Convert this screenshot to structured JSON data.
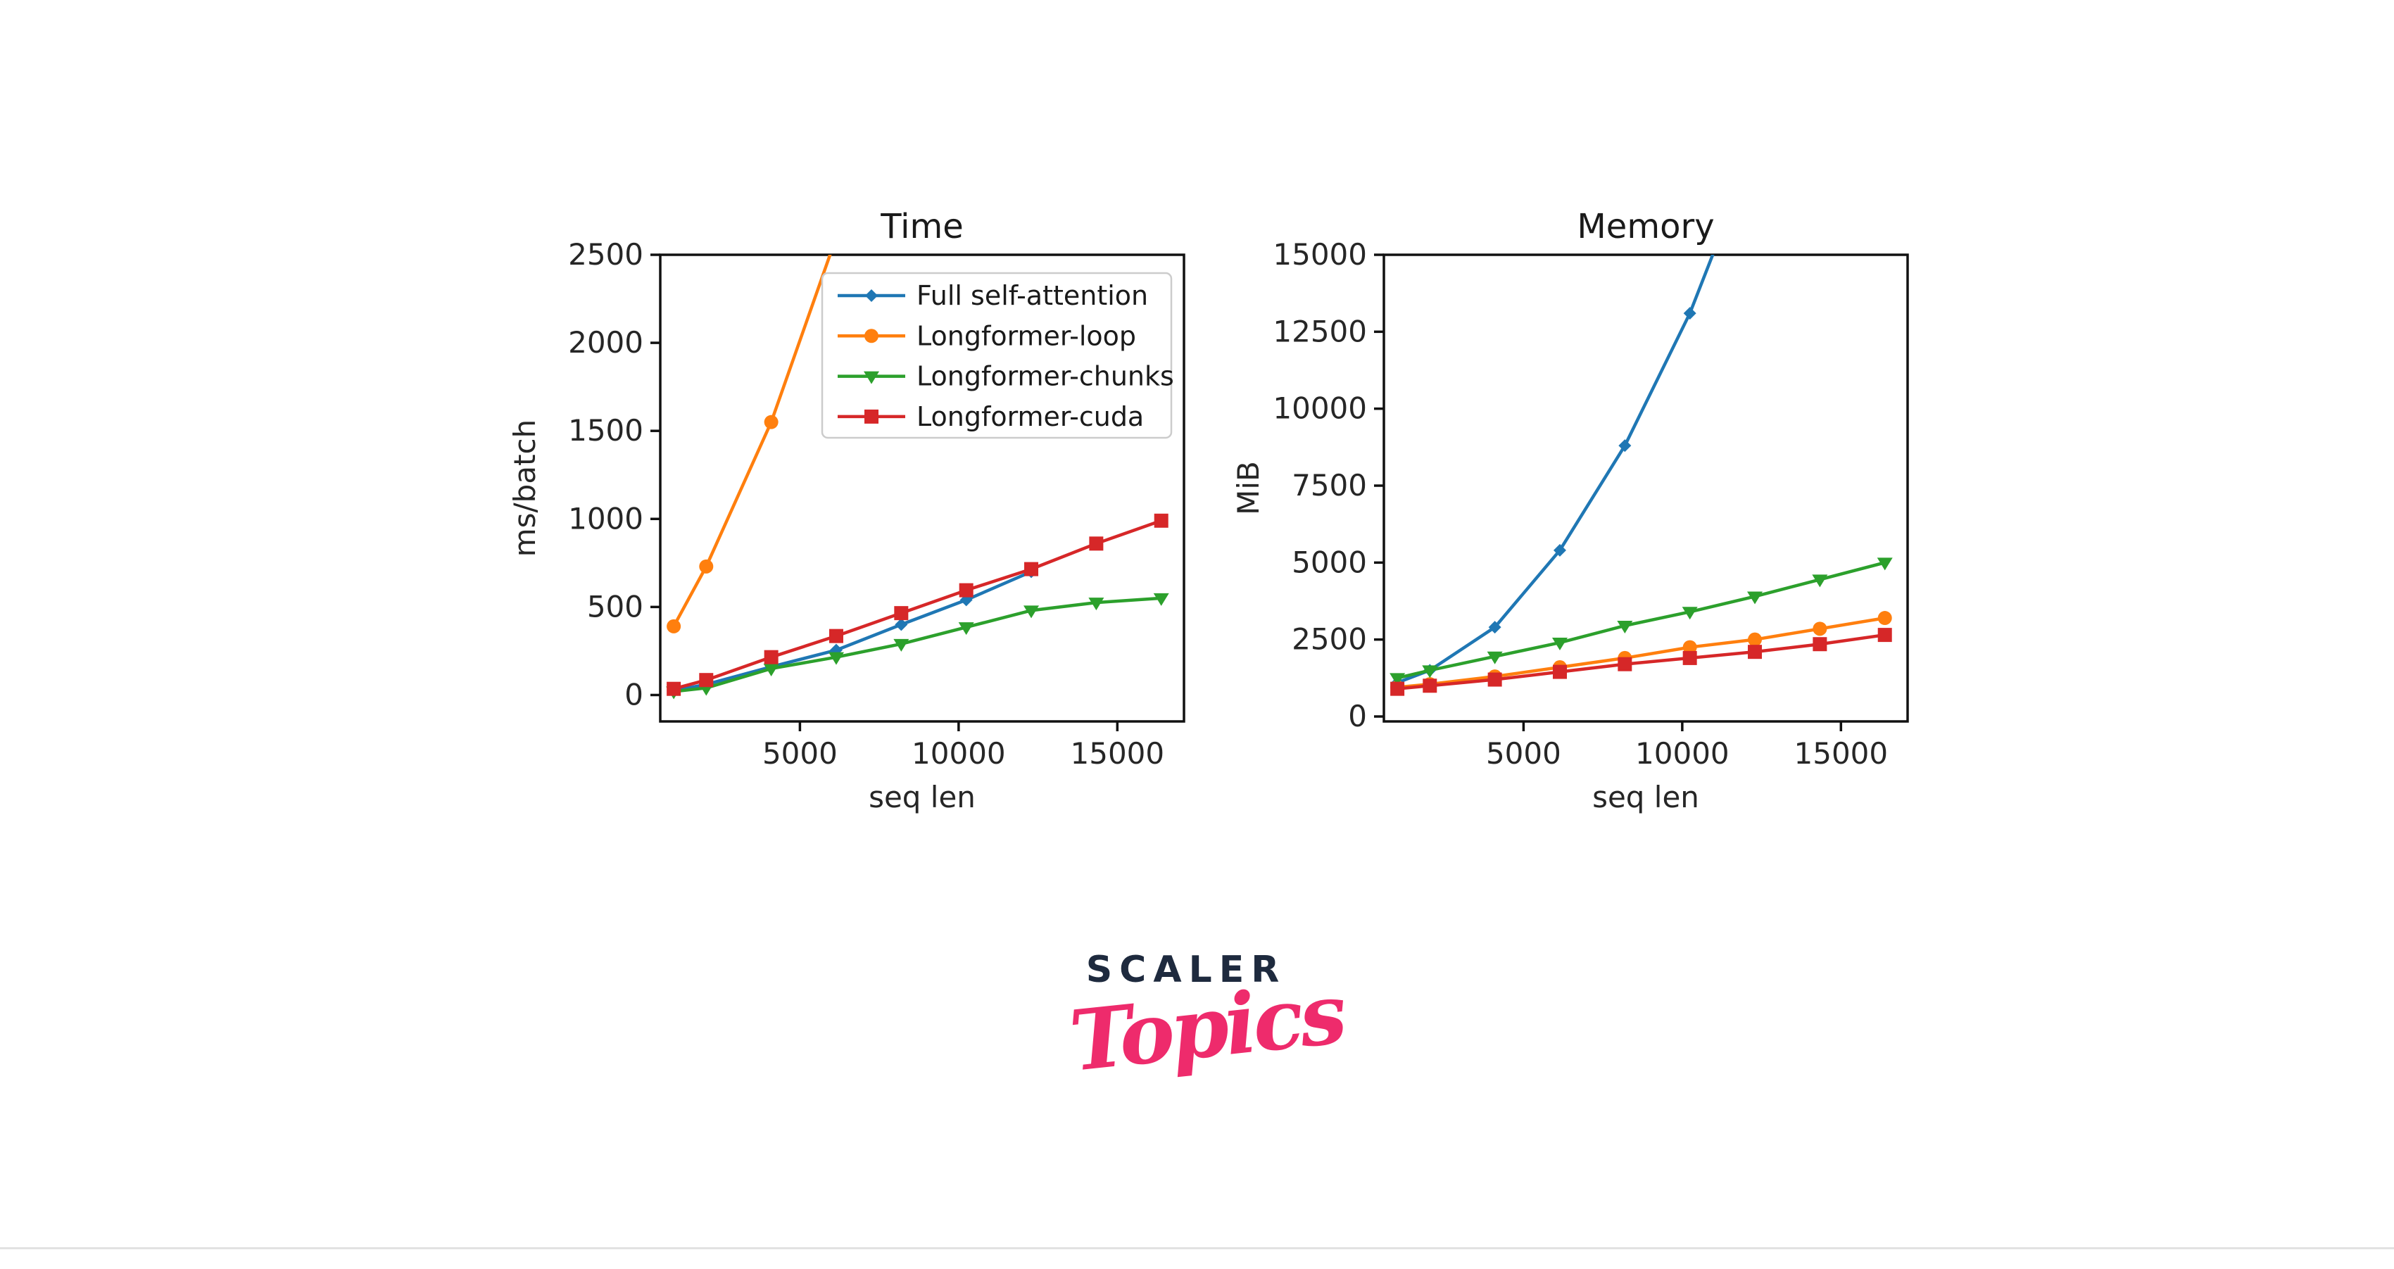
{
  "page": {
    "background_color": "#ffffff",
    "divider_color": "#e2e2e2"
  },
  "branding": {
    "wordmark": "SCALER",
    "sub_wordmark": "Topics",
    "wordmark_color": "#1e2a3e",
    "sub_wordmark_color": "#ee2b6c"
  },
  "chart_data": [
    {
      "type": "line",
      "title": "Time",
      "xlabel": "seq len",
      "ylabel": "ms/batch",
      "x": [
        1024,
        2048,
        4096,
        6144,
        8192,
        10240,
        12288,
        14336,
        16384
      ],
      "xticks": [
        5000,
        10000,
        15000
      ],
      "yticks": [
        0,
        500,
        1000,
        1500,
        2000,
        2500
      ],
      "xlim": [
        600,
        17100
      ],
      "ylim": [
        -150,
        2500
      ],
      "grid": false,
      "legend_visible": true,
      "legend_position": "upper right inside",
      "series": [
        {
          "name": "Full self-attention",
          "color": "#1f77b4",
          "marker": "diamond",
          "values": [
            25,
            60,
            160,
            255,
            400,
            540,
            700
          ]
        },
        {
          "name": "Longformer-loop",
          "color": "#ff7f0e",
          "marker": "circle",
          "values": [
            390,
            730,
            1550,
            2600
          ]
        },
        {
          "name": "Longformer-chunks",
          "color": "#2ca02c",
          "marker": "triangle-down",
          "values": [
            20,
            40,
            150,
            215,
            290,
            385,
            480,
            525,
            550
          ]
        },
        {
          "name": "Longformer-cuda",
          "color": "#d62728",
          "marker": "square",
          "values": [
            35,
            85,
            215,
            335,
            465,
            595,
            715,
            860,
            990
          ]
        }
      ]
    },
    {
      "type": "line",
      "title": "Memory",
      "xlabel": "seq len",
      "ylabel": "MiB",
      "x": [
        1024,
        2048,
        4096,
        6144,
        8192,
        10240,
        12288,
        14336,
        16384
      ],
      "xticks": [
        5000,
        10000,
        15000
      ],
      "yticks": [
        0,
        2500,
        5000,
        7500,
        10000,
        12500,
        15000
      ],
      "xlim": [
        600,
        17100
      ],
      "ylim": [
        -160,
        15000
      ],
      "grid": false,
      "legend_visible": false,
      "series": [
        {
          "name": "Full self-attention",
          "color": "#1f77b4",
          "marker": "diamond",
          "values": [
            1100,
            1500,
            2900,
            5400,
            8800,
            13100,
            18500
          ]
        },
        {
          "name": "Longformer-loop",
          "color": "#ff7f0e",
          "marker": "circle",
          "values": [
            950,
            1050,
            1300,
            1600,
            1900,
            2250,
            2500,
            2850,
            3200
          ]
        },
        {
          "name": "Longformer-chunks",
          "color": "#2ca02c",
          "marker": "triangle-down",
          "values": [
            1250,
            1500,
            1950,
            2400,
            2950,
            3400,
            3900,
            4450,
            5000
          ]
        },
        {
          "name": "Longformer-cuda",
          "color": "#d62728",
          "marker": "square",
          "values": [
            900,
            1000,
            1200,
            1450,
            1700,
            1900,
            2100,
            2350,
            2650
          ]
        }
      ]
    }
  ],
  "style": {
    "axis_color": "#111111",
    "tick_label_color": "#262626",
    "title_color": "#1a1a1a",
    "legend_border_color": "#cccccc",
    "legend_bg_color": "#ffffff"
  }
}
